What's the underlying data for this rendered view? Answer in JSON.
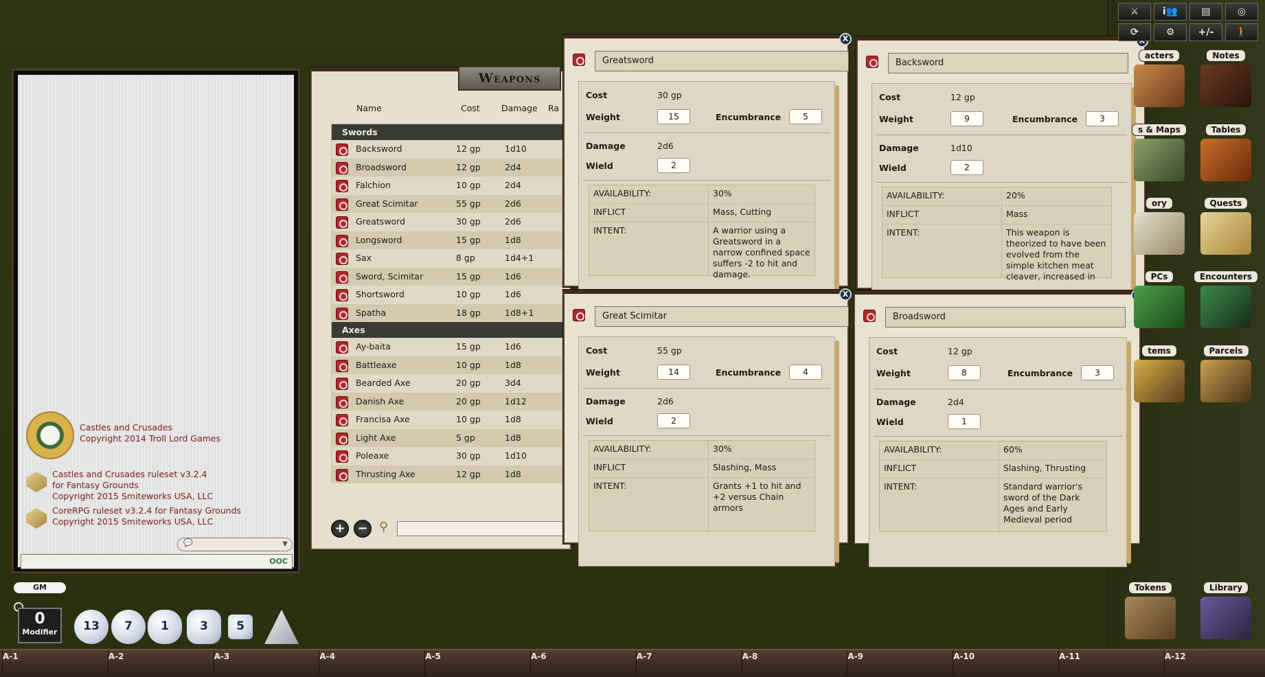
{
  "chat": {
    "credits": [
      {
        "line1": "Castles and Crusades",
        "line2": "Copyright 2014 Troll Lord Games",
        "line3": ""
      },
      {
        "line1": "Castles and Crusades ruleset v3.2.4",
        "line2": "for Fantasy Grounds",
        "line3": "Copyright 2015 Smiteworks USA, LLC"
      },
      {
        "line1": "CoreRPG ruleset v3.2.4 for Fantasy Grounds",
        "line2": "Copyright 2015 Smiteworks USA, LLC",
        "line3": ""
      }
    ],
    "mode_icon": "speech-bubble-icon",
    "ooc_label": "OOC"
  },
  "weapons_list": {
    "title": "Weapons",
    "columns": [
      "Name",
      "Cost",
      "Damage",
      "Ra"
    ],
    "groups": [
      {
        "name": "Swords",
        "items": [
          {
            "name": "Backsword",
            "cost": "12 gp",
            "damage": "1d10"
          },
          {
            "name": "Broadsword",
            "cost": "12 gp",
            "damage": "2d4"
          },
          {
            "name": "Falchion",
            "cost": "10 gp",
            "damage": "2d4"
          },
          {
            "name": "Great Scimitar",
            "cost": "55 gp",
            "damage": "2d6"
          },
          {
            "name": "Greatsword",
            "cost": "30 gp",
            "damage": "2d6"
          },
          {
            "name": "Longsword",
            "cost": "15 gp",
            "damage": "1d8"
          },
          {
            "name": "Sax",
            "cost": "8 gp",
            "damage": "1d4+1"
          },
          {
            "name": "Sword, Scimitar",
            "cost": "15 gp",
            "damage": "1d6"
          },
          {
            "name": "Shortsword",
            "cost": "10 gp",
            "damage": "1d6"
          },
          {
            "name": "Spatha",
            "cost": "18 gp",
            "damage": "1d8+1"
          }
        ]
      },
      {
        "name": "Axes",
        "items": [
          {
            "name": "Ay-baita",
            "cost": "15 gp",
            "damage": "1d6"
          },
          {
            "name": "Battleaxe",
            "cost": "10 gp",
            "damage": "1d8"
          },
          {
            "name": "Bearded Axe",
            "cost": "20 gp",
            "damage": "3d4"
          },
          {
            "name": "Danish Axe",
            "cost": "20 gp",
            "damage": "1d12"
          },
          {
            "name": "Francisa Axe",
            "cost": "10 gp",
            "damage": "1d8"
          },
          {
            "name": "Light Axe",
            "cost": "5 gp",
            "damage": "1d8"
          },
          {
            "name": "Poleaxe",
            "cost": "30 gp",
            "damage": "1d10"
          },
          {
            "name": "Thrusting Axe",
            "cost": "12 gp",
            "damage": "1d8"
          }
        ]
      }
    ],
    "add_label": "+",
    "remove_label": "−"
  },
  "labels": {
    "cost": "Cost",
    "weight": "Weight",
    "encumbrance": "Encumbrance",
    "damage": "Damage",
    "wield": "Wield",
    "availability": "AVAILABILITY:",
    "inflict": "INFLICT",
    "intent": "INTENT:"
  },
  "details": {
    "greatsword": {
      "name": "Greatsword",
      "cost": "30 gp",
      "weight": "15",
      "encumbrance": "5",
      "damage": "2d6",
      "wield": "2",
      "availability": "30%",
      "inflict": "Mass, Cutting",
      "intent": "A warrior using a Greatsword in a narrow confined space suffers -2 to hit and damage."
    },
    "backsword": {
      "name": "Backsword",
      "cost": "12 gp",
      "weight": "9",
      "encumbrance": "3",
      "damage": "1d10",
      "wield": "2",
      "availability": "20%",
      "inflict": "Mass",
      "intent": "This weapon is theorized to have been evolved from the simple kitchen meat cleaver, increased in"
    },
    "great_scimitar": {
      "name": "Great Scimitar",
      "cost": "55 gp",
      "weight": "14",
      "encumbrance": "4",
      "damage": "2d6",
      "wield": "2",
      "availability": "30%",
      "inflict": "Slashing, Mass",
      "intent": "Grants +1 to hit and +2 versus Chain armors"
    },
    "broadsword": {
      "name": "Broadsword",
      "cost": "12 gp",
      "weight": "8",
      "encumbrance": "3",
      "damage": "2d4",
      "wield": "1",
      "availability": "60%",
      "inflict": "Slashing, Thrusting",
      "intent": "Standard warrior's sword of the Dark Ages and Early Medieval period"
    }
  },
  "sidebar": {
    "top_buttons": [
      "combat-icon",
      "party-icon",
      "modifiers-icon",
      "options-icon",
      "sync-icon",
      "settings-icon",
      "+/-",
      "walk-icon"
    ],
    "plus_minus": "+/-",
    "items": [
      {
        "label": "acters",
        "key": "characters"
      },
      {
        "label": "Notes",
        "key": "notes"
      },
      {
        "label": "s & Maps",
        "key": "images-maps"
      },
      {
        "label": "Tables",
        "key": "tables"
      },
      {
        "label": "ory",
        "key": "story"
      },
      {
        "label": "Quests",
        "key": "quests"
      },
      {
        "label": "PCs",
        "key": "npcs"
      },
      {
        "label": "Encounters",
        "key": "encounters"
      },
      {
        "label": "tems",
        "key": "items"
      },
      {
        "label": "Parcels",
        "key": "parcels"
      },
      {
        "label": "Tokens",
        "key": "tokens"
      },
      {
        "label": "Library",
        "key": "library"
      }
    ]
  },
  "bottom": {
    "gm_label": "GM",
    "modifier_value": "0",
    "modifier_label": "Modifier",
    "dice": [
      "d20",
      "d12",
      "d10",
      "d8",
      "d6",
      "d4"
    ],
    "dice_faces": [
      "13",
      "7",
      "1",
      "3",
      "5",
      ""
    ]
  },
  "ruler": [
    "A-1",
    "A-2",
    "A-3",
    "A-4",
    "A-5",
    "A-6",
    "A-7",
    "A-8",
    "A-9",
    "A-10",
    "A-11",
    "A-12"
  ]
}
